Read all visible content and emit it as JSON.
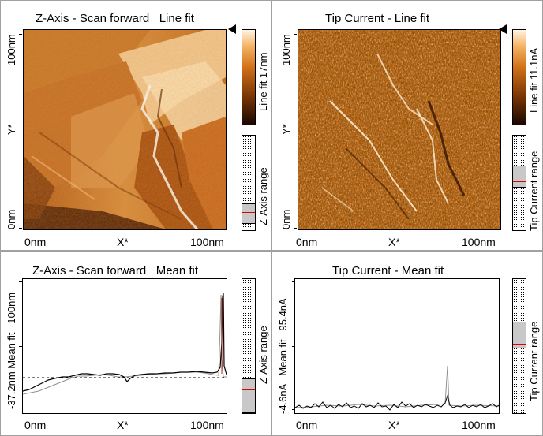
{
  "panels": {
    "z_line": {
      "title": "Z-Axis - Scan forward   Line fit",
      "y_top": "100nm",
      "y_mid": "Y*",
      "y_bottom": "0nm",
      "x_left": "0nm",
      "x_mid": "X*",
      "x_right": "100nm",
      "colorbar_label": "Line fit 17nm",
      "range_label": "Z-Axis range"
    },
    "tip_line": {
      "title": "Tip Current - Line fit",
      "y_top": "100nm",
      "y_mid": "Y*",
      "y_bottom": "0nm",
      "x_left": "0nm",
      "x_mid": "X*",
      "x_right": "100nm",
      "colorbar_label": "Line fit 11.1nA",
      "range_label": "Tip Current range"
    },
    "z_mean": {
      "title": "Z-Axis - Scan forward   Mean fit",
      "y_label": "-37.2nm Mean fit   100nm",
      "x_left": "0nm",
      "x_mid": "X*",
      "x_right": "100nm",
      "range_label": "Z-Axis range"
    },
    "tip_mean": {
      "title": "Tip Current - Mean fit",
      "y_label": "-4.6nA   Mean fit   95.4nA",
      "x_left": "0nm",
      "x_mid": "X*",
      "x_right": "100nm",
      "range_label": "Tip Current range"
    }
  },
  "colors": {
    "orange_dark": "#2a0e00",
    "orange_mid": "#b85c10",
    "orange_light": "#ffe8c8",
    "range_fill": "#c8c8c8",
    "range_marker": "#e00000"
  },
  "icons": {
    "colorbar_pointer": "triangle-left"
  }
}
